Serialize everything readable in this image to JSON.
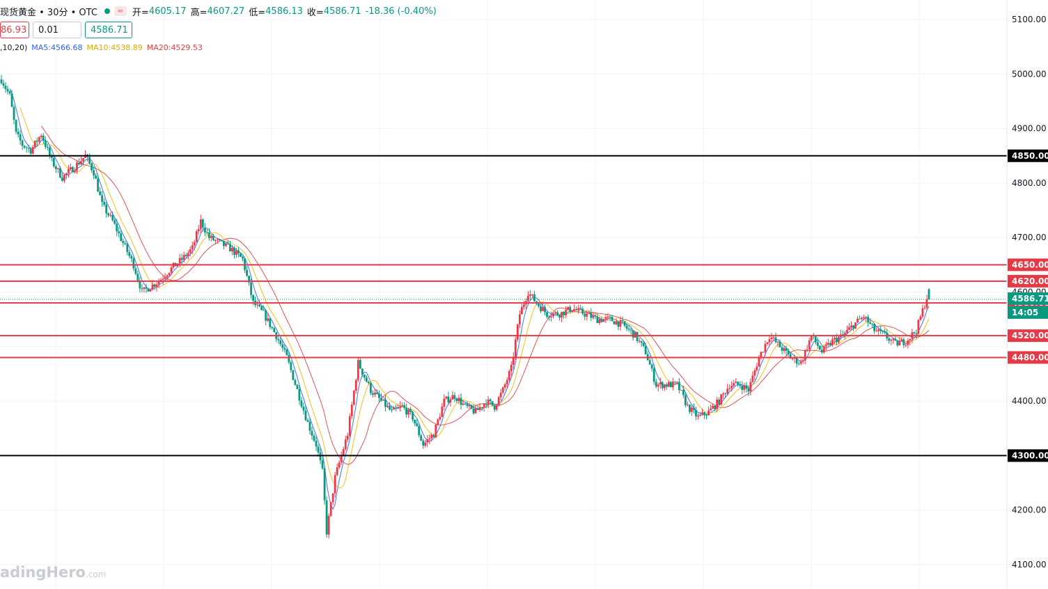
{
  "header": {
    "symbol": "现货黄金 • 30分 • OTC",
    "wave_icon": "≈",
    "open_label": "开=",
    "open": "4605.17",
    "high_label": "高=",
    "high": "4607.27",
    "low_label": "低=",
    "low": "4586.13",
    "close_label": "收=",
    "close": "4586.71",
    "change": "-18.36 (-0.40%)"
  },
  "order": {
    "sell_price": "86.93",
    "quantity": "0.01",
    "buy_price": "4586.71"
  },
  "ma_legend": {
    "params": ",10,20)",
    "ma5": "MA5:4566.68",
    "ma10": "MA10:4538.89",
    "ma20": "MA20:4529.53"
  },
  "price_axis": [
    "5100.00",
    "5000.00",
    "4900.00",
    "4800.00",
    "4700.00",
    "4600.00",
    "4400.00",
    "4200.00",
    "4100.00"
  ],
  "levels": [
    {
      "price": 4850,
      "label": "4850.00",
      "color": "#000000"
    },
    {
      "price": 4650,
      "label": "4650.00",
      "color": "#e53946"
    },
    {
      "price": 4620,
      "label": "4620.00",
      "color": "#e53946"
    },
    {
      "price": 4580,
      "label": "4580.00",
      "color": "#e53946"
    },
    {
      "price": 4520,
      "label": "4520.00",
      "color": "#e53946"
    },
    {
      "price": 4480,
      "label": "4480.00",
      "color": "#e53946"
    },
    {
      "price": 4300,
      "label": "4300.00",
      "color": "#000000"
    }
  ],
  "last_price": {
    "price": 4586.71,
    "label": "4586.71",
    "countdown": "14:05",
    "color": "#089981"
  },
  "watermark": {
    "brand": "adingHero",
    "suffix": ".com"
  },
  "colors": {
    "up": "#f23645",
    "down": "#089981",
    "ma5": "#2962ff",
    "ma10": "#f5b800",
    "ma20": "#e04040",
    "grid": "#f0f3fa"
  },
  "chart_data": {
    "type": "candlestick",
    "timeframe": "30分",
    "y_range": [
      4080,
      5130
    ],
    "anchors": [
      [
        0,
        4990
      ],
      [
        8,
        4960
      ],
      [
        14,
        4890
      ],
      [
        20,
        4870
      ],
      [
        28,
        4860
      ],
      [
        38,
        4890
      ],
      [
        48,
        4840
      ],
      [
        58,
        4810
      ],
      [
        70,
        4830
      ],
      [
        80,
        4850
      ],
      [
        88,
        4820
      ],
      [
        96,
        4760
      ],
      [
        106,
        4730
      ],
      [
        116,
        4690
      ],
      [
        126,
        4650
      ],
      [
        134,
        4600
      ],
      [
        142,
        4610
      ],
      [
        150,
        4620
      ],
      [
        160,
        4640
      ],
      [
        172,
        4660
      ],
      [
        182,
        4680
      ],
      [
        190,
        4730
      ],
      [
        198,
        4700
      ],
      [
        208,
        4690
      ],
      [
        218,
        4680
      ],
      [
        230,
        4660
      ],
      [
        240,
        4580
      ],
      [
        250,
        4560
      ],
      [
        262,
        4520
      ],
      [
        272,
        4480
      ],
      [
        282,
        4420
      ],
      [
        292,
        4360
      ],
      [
        300,
        4320
      ],
      [
        306,
        4270
      ],
      [
        310,
        4160
      ],
      [
        318,
        4260
      ],
      [
        330,
        4340
      ],
      [
        340,
        4470
      ],
      [
        352,
        4420
      ],
      [
        362,
        4400
      ],
      [
        372,
        4380
      ],
      [
        382,
        4390
      ],
      [
        392,
        4370
      ],
      [
        402,
        4320
      ],
      [
        412,
        4340
      ],
      [
        422,
        4400
      ],
      [
        432,
        4410
      ],
      [
        442,
        4390
      ],
      [
        452,
        4380
      ],
      [
        462,
        4400
      ],
      [
        470,
        4390
      ],
      [
        478,
        4420
      ],
      [
        486,
        4460
      ],
      [
        494,
        4560
      ],
      [
        502,
        4600
      ],
      [
        510,
        4580
      ],
      [
        520,
        4560
      ],
      [
        532,
        4560
      ],
      [
        544,
        4570
      ],
      [
        556,
        4560
      ],
      [
        568,
        4550
      ],
      [
        580,
        4550
      ],
      [
        592,
        4540
      ],
      [
        604,
        4520
      ],
      [
        614,
        4490
      ],
      [
        624,
        4430
      ],
      [
        634,
        4430
      ],
      [
        644,
        4430
      ],
      [
        654,
        4390
      ],
      [
        664,
        4370
      ],
      [
        674,
        4380
      ],
      [
        684,
        4400
      ],
      [
        694,
        4430
      ],
      [
        704,
        4430
      ],
      [
        712,
        4420
      ],
      [
        722,
        4480
      ],
      [
        732,
        4520
      ],
      [
        742,
        4500
      ],
      [
        752,
        4480
      ],
      [
        762,
        4470
      ],
      [
        772,
        4520
      ],
      [
        782,
        4490
      ],
      [
        792,
        4510
      ],
      [
        802,
        4520
      ],
      [
        812,
        4540
      ],
      [
        822,
        4555
      ],
      [
        832,
        4530
      ],
      [
        842,
        4520
      ],
      [
        852,
        4505
      ],
      [
        862,
        4510
      ],
      [
        872,
        4530
      ],
      [
        882,
        4590
      ]
    ],
    "total_bars": 882
  }
}
